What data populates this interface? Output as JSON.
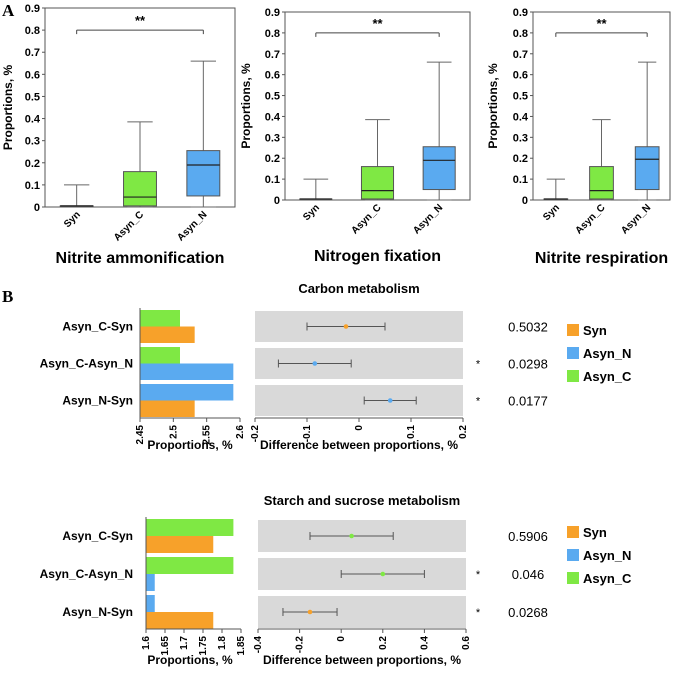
{
  "chart_data": [
    {
      "type": "box",
      "panel": "A",
      "title": "Nitrite ammonification",
      "ylabel": "Proportions, %",
      "categories": [
        "Syn",
        "Asyn_C",
        "Asyn_N"
      ],
      "colors": [
        "#ffffff",
        "#7fe844",
        "#5aaaf0"
      ],
      "ylim": [
        0,
        0.9
      ],
      "yticks": [
        "0",
        "0.1",
        "0.2",
        "0.3",
        "0.4",
        "0.5",
        "0.6",
        "0.7",
        "0.8",
        "0.9"
      ],
      "boxes": [
        {
          "min": 0,
          "q1": 0,
          "median": 0.005,
          "q3": 0.005,
          "max": 0.1
        },
        {
          "min": 0,
          "q1": 0.005,
          "median": 0.045,
          "q3": 0.16,
          "max": 0.385
        },
        {
          "min": 0,
          "q1": 0.05,
          "median": 0.19,
          "q3": 0.255,
          "max": 0.66
        }
      ],
      "significance": {
        "from": "Syn",
        "to": "Asyn_N",
        "label": "**",
        "y": 0.8
      }
    },
    {
      "type": "box",
      "panel": "A",
      "title": "Nitrogen fixation",
      "ylabel": "Proportions, %",
      "categories": [
        "Syn",
        "Asyn_C",
        "Asyn_N"
      ],
      "colors": [
        "#ffffff",
        "#7fe844",
        "#5aaaf0"
      ],
      "ylim": [
        0,
        0.9
      ],
      "yticks": [
        "0",
        "0.1",
        "0.2",
        "0.3",
        "0.4",
        "0.5",
        "0.6",
        "0.7",
        "0.8",
        "0.9"
      ],
      "boxes": [
        {
          "min": 0,
          "q1": 0,
          "median": 0.005,
          "q3": 0.005,
          "max": 0.1
        },
        {
          "min": 0,
          "q1": 0.005,
          "median": 0.045,
          "q3": 0.16,
          "max": 0.385
        },
        {
          "min": 0,
          "q1": 0.05,
          "median": 0.19,
          "q3": 0.255,
          "max": 0.66
        }
      ],
      "significance": {
        "from": "Syn",
        "to": "Asyn_N",
        "label": "**",
        "y": 0.8
      }
    },
    {
      "type": "box",
      "panel": "A",
      "title": "Nitrite respiration",
      "ylabel": "Proportions, %",
      "categories": [
        "Syn",
        "Asyn_C",
        "Asyn_N"
      ],
      "colors": [
        "#ffffff",
        "#7fe844",
        "#5aaaf0"
      ],
      "ylim": [
        0,
        0.9
      ],
      "yticks": [
        "0",
        "0.1",
        "0.2",
        "0.3",
        "0.4",
        "0.5",
        "0.6",
        "0.7",
        "0.8",
        "0.9"
      ],
      "boxes": [
        {
          "min": 0,
          "q1": 0,
          "median": 0.005,
          "q3": 0.005,
          "max": 0.1
        },
        {
          "min": 0,
          "q1": 0.005,
          "median": 0.045,
          "q3": 0.16,
          "max": 0.385
        },
        {
          "min": 0,
          "q1": 0.05,
          "median": 0.195,
          "q3": 0.255,
          "max": 0.66
        }
      ],
      "significance": {
        "from": "Syn",
        "to": "Asyn_N",
        "label": "**",
        "y": 0.8
      }
    },
    {
      "type": "bar",
      "panel": "B",
      "title": "Carbon metabolism",
      "orientation": "horizontal",
      "xlabel": "Proportions, %",
      "xlim": [
        2.45,
        2.6
      ],
      "xticks": [
        "2.45",
        "2.5",
        "2.55",
        "2.6"
      ],
      "comparisons": [
        "Asyn_C-Syn",
        "Asyn_C-Asyn_N",
        "Asyn_N-Syn"
      ],
      "series": [
        {
          "name": "Asyn_C",
          "color": "#7fe844",
          "values": [
            2.51,
            2.51,
            null
          ]
        },
        {
          "name": "Asyn_N",
          "color": "#5aaaf0",
          "values": [
            null,
            2.59,
            2.59
          ]
        },
        {
          "name": "Syn",
          "color": "#f7a12a",
          "values": [
            2.532,
            null,
            2.532
          ]
        }
      ],
      "diff": {
        "xlabel": "Difference between proportions, %",
        "xlim": [
          -0.2,
          0.2
        ],
        "xticks": [
          "-0.2",
          "-0.1",
          "0",
          "0.1",
          "0.2"
        ],
        "points": [
          {
            "value": -0.025,
            "lo": -0.1,
            "hi": 0.05,
            "color": "#f7a12a"
          },
          {
            "value": -0.085,
            "lo": -0.155,
            "hi": -0.015,
            "color": "#5aaaf0"
          },
          {
            "value": 0.06,
            "lo": 0.01,
            "hi": 0.11,
            "color": "#5aaaf0"
          }
        ]
      },
      "p_values": [
        "0.5032",
        "0.0298",
        "0.0177"
      ],
      "stars": [
        "",
        "*",
        "*"
      ],
      "legend": [
        {
          "name": "Syn",
          "color": "#f7a12a"
        },
        {
          "name": "Asyn_N",
          "color": "#5aaaf0"
        },
        {
          "name": "Asyn_C",
          "color": "#7fe844"
        }
      ]
    },
    {
      "type": "bar",
      "panel": "B",
      "title": "Starch and sucrose metabolism",
      "orientation": "horizontal",
      "xlabel": "Proportions, %",
      "xlim": [
        1.6,
        1.85
      ],
      "xticks": [
        "1.6",
        "1.65",
        "1.7",
        "1.75",
        "1.8",
        "1.85"
      ],
      "comparisons": [
        "Asyn_C-Syn",
        "Asyn_C-Asyn_N",
        "Asyn_N-Syn"
      ],
      "series": [
        {
          "name": "Asyn_C",
          "color": "#7fe844",
          "values": [
            1.83,
            1.83,
            null
          ]
        },
        {
          "name": "Asyn_N",
          "color": "#5aaaf0",
          "values": [
            null,
            1.623,
            1.623
          ]
        },
        {
          "name": "Syn",
          "color": "#f7a12a",
          "values": [
            1.777,
            null,
            1.777
          ]
        }
      ],
      "diff": {
        "xlabel": "Difference between proportions, %",
        "xlim": [
          -0.4,
          0.6
        ],
        "xticks": [
          "-0.4",
          "-0.2",
          "0",
          "0.2",
          "0.4",
          "0.6"
        ],
        "points": [
          {
            "value": 0.05,
            "lo": -0.15,
            "hi": 0.25,
            "color": "#7fe844"
          },
          {
            "value": 0.2,
            "lo": 0.0,
            "hi": 0.4,
            "color": "#7fe844"
          },
          {
            "value": -0.15,
            "lo": -0.28,
            "hi": -0.02,
            "color": "#f7a12a"
          }
        ]
      },
      "p_values": [
        "0.5906",
        "0.046",
        "0.0268"
      ],
      "stars": [
        "",
        "*",
        "*"
      ],
      "legend": [
        {
          "name": "Syn",
          "color": "#f7a12a"
        },
        {
          "name": "Asyn_N",
          "color": "#5aaaf0"
        },
        {
          "name": "Asyn_C",
          "color": "#7fe844"
        }
      ]
    }
  ],
  "labels": {
    "panel_a": "A",
    "panel_b": "B"
  }
}
